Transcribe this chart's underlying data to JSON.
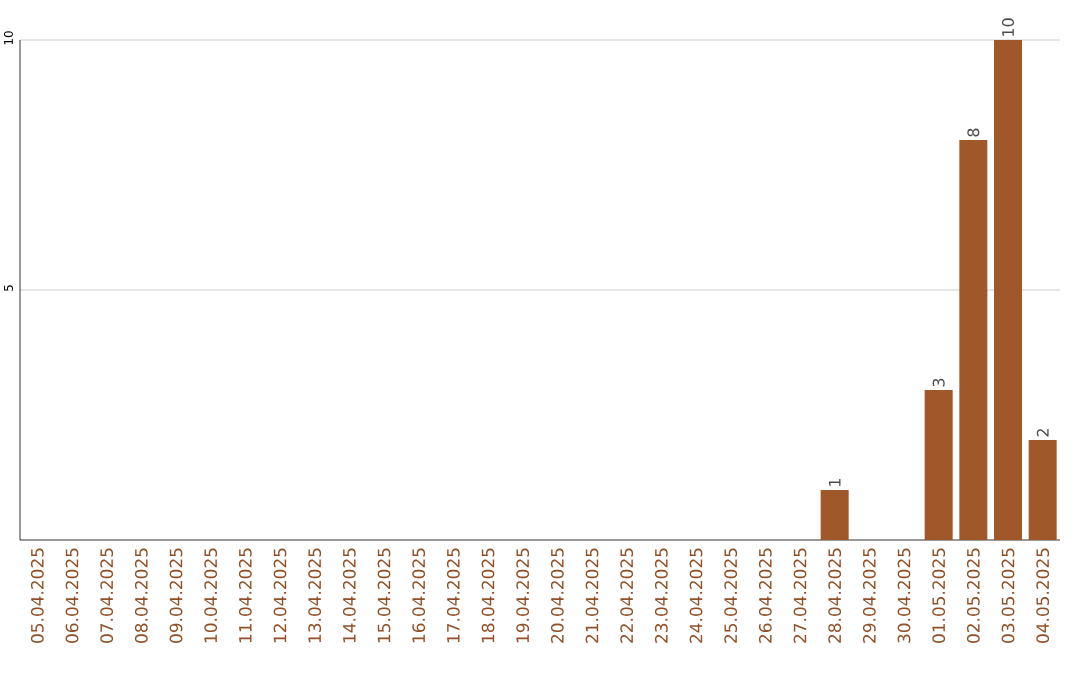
{
  "chart_data": {
    "type": "bar",
    "categories": [
      "05.04.2025",
      "06.04.2025",
      "07.04.2025",
      "08.04.2025",
      "09.04.2025",
      "10.04.2025",
      "11.04.2025",
      "12.04.2025",
      "13.04.2025",
      "14.04.2025",
      "15.04.2025",
      "16.04.2025",
      "17.04.2025",
      "18.04.2025",
      "19.04.2025",
      "20.04.2025",
      "21.04.2025",
      "22.04.2025",
      "23.04.2025",
      "24.04.2025",
      "25.04.2025",
      "26.04.2025",
      "27.04.2025",
      "28.04.2025",
      "29.04.2025",
      "30.04.2025",
      "01.05.2025",
      "02.05.2025",
      "03.05.2025",
      "04.05.2025"
    ],
    "values": [
      0,
      0,
      0,
      0,
      0,
      0,
      0,
      0,
      0,
      0,
      0,
      0,
      0,
      0,
      0,
      0,
      0,
      0,
      0,
      0,
      0,
      0,
      0,
      1,
      0,
      0,
      3,
      8,
      10,
      2
    ],
    "value_labels": [
      null,
      null,
      null,
      null,
      null,
      null,
      null,
      null,
      null,
      null,
      null,
      null,
      null,
      null,
      null,
      null,
      null,
      null,
      null,
      null,
      null,
      null,
      null,
      "1",
      null,
      null,
      "3",
      "8",
      "10",
      "2"
    ],
    "color": "#a0582a",
    "ylim": [
      0,
      10
    ],
    "yticks": [
      5,
      10
    ],
    "grid": "y"
  }
}
